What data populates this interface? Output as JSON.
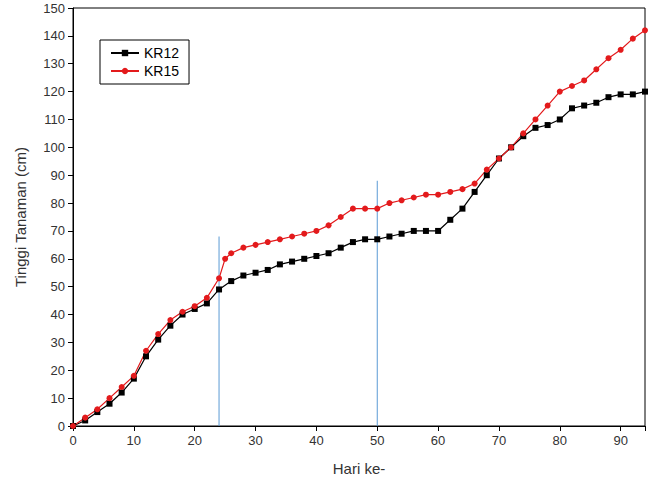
{
  "chart_data": {
    "type": "line",
    "x_label": "Hari ke-",
    "y_label": "Tinggi Tanaman (cm)",
    "xlim": [
      0,
      94
    ],
    "xticks": [
      0,
      10,
      20,
      30,
      40,
      50,
      60,
      70,
      80,
      90
    ],
    "ylim": [
      0,
      150
    ],
    "yticks": [
      0,
      10,
      20,
      30,
      40,
      50,
      60,
      70,
      80,
      90,
      100,
      110,
      120,
      130,
      140,
      150
    ],
    "grid": false,
    "legend": "upper left",
    "series": [
      {
        "name": "KR12",
        "color": "#000000",
        "marker": "square",
        "x": [
          0,
          2,
          4,
          6,
          8,
          10,
          12,
          14,
          16,
          18,
          20,
          22,
          24,
          26,
          28,
          30,
          32,
          34,
          36,
          38,
          40,
          42,
          44,
          46,
          48,
          50,
          52,
          54,
          56,
          58,
          60,
          62,
          64,
          66,
          68,
          70,
          72,
          74,
          76,
          78,
          80,
          82,
          84,
          86,
          88,
          90,
          92,
          94
        ],
        "values": [
          0,
          2,
          5,
          8,
          12,
          17,
          25,
          31,
          36,
          40,
          42,
          44,
          49,
          52,
          54,
          55,
          56,
          58,
          59,
          60,
          61,
          62,
          64,
          66,
          67,
          67,
          68,
          69,
          70,
          70,
          70,
          74,
          78,
          84,
          90,
          96,
          100,
          104,
          107,
          108,
          110,
          114,
          115,
          116,
          118,
          119,
          119,
          120
        ]
      },
      {
        "name": "KR15",
        "color": "#e31a1c",
        "marker": "circle",
        "x": [
          0,
          2,
          4,
          6,
          8,
          10,
          12,
          14,
          16,
          18,
          20,
          22,
          24,
          25,
          26,
          28,
          30,
          32,
          34,
          36,
          38,
          40,
          42,
          44,
          46,
          48,
          50,
          52,
          54,
          56,
          58,
          60,
          62,
          64,
          66,
          68,
          70,
          72,
          74,
          76,
          78,
          80,
          82,
          84,
          86,
          88,
          90,
          92,
          94
        ],
        "values": [
          0,
          3,
          6,
          10,
          14,
          18,
          27,
          33,
          38,
          41,
          43,
          46,
          53,
          60,
          62,
          64,
          65,
          66,
          67,
          68,
          69,
          70,
          72,
          75,
          78,
          78,
          78,
          80,
          81,
          82,
          83,
          83,
          84,
          85,
          87,
          92,
          96,
          100,
          105,
          110,
          115,
          120,
          122,
          124,
          128,
          132,
          135,
          139,
          142
        ]
      }
    ],
    "reference_lines": [
      {
        "x": 24,
        "ymax": 68,
        "color": "#5b9bd5"
      },
      {
        "x": 50,
        "ymax": 88,
        "color": "#5b9bd5"
      }
    ]
  }
}
